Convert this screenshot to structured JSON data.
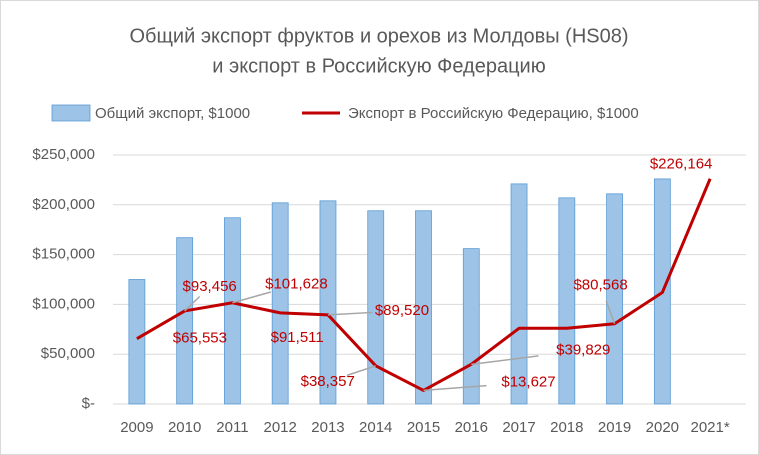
{
  "chart_data": {
    "type": "bar-line",
    "title": [
      "Общий экспорт фруктов и орехов из Молдовы (HS08)",
      "и экспорт в Российскую Федерацию"
    ],
    "categories": [
      "2009",
      "2010",
      "2011",
      "2012",
      "2013",
      "2014",
      "2015",
      "2016",
      "2017",
      "2018",
      "2019",
      "2020",
      "2021*"
    ],
    "series": [
      {
        "name": "Общий экспорт, $1000",
        "type": "bar",
        "color": "#9dc3e6",
        "values": [
          125000,
          167000,
          187000,
          202000,
          204000,
          194000,
          194000,
          156000,
          221000,
          207000,
          211000,
          226000,
          null
        ]
      },
      {
        "name": "Экспорт в Российскую Федерацию, $1000",
        "type": "line",
        "color": "#c00000",
        "values": [
          65553,
          93456,
          101628,
          91511,
          89520,
          38357,
          13627,
          39829,
          76000,
          76000,
          80568,
          112000,
          226164
        ],
        "value_labels": [
          "$65,553",
          "$93,456",
          "$101,628",
          "$91,511",
          "$89,520",
          "$38,357",
          "$13,627",
          "$39,829",
          null,
          null,
          "$80,568",
          null,
          "$226,164"
        ]
      }
    ],
    "ylim": [
      0,
      250000
    ],
    "yticks": [
      {
        "value": 0,
        "label": "$-"
      },
      {
        "value": 50000,
        "label": "$50,000"
      },
      {
        "value": 100000,
        "label": "$100,000"
      },
      {
        "value": 150000,
        "label": "$150,000"
      },
      {
        "value": 200000,
        "label": "$200,000"
      },
      {
        "value": 250000,
        "label": "$250,000"
      }
    ],
    "grid": true,
    "legend": "top"
  }
}
